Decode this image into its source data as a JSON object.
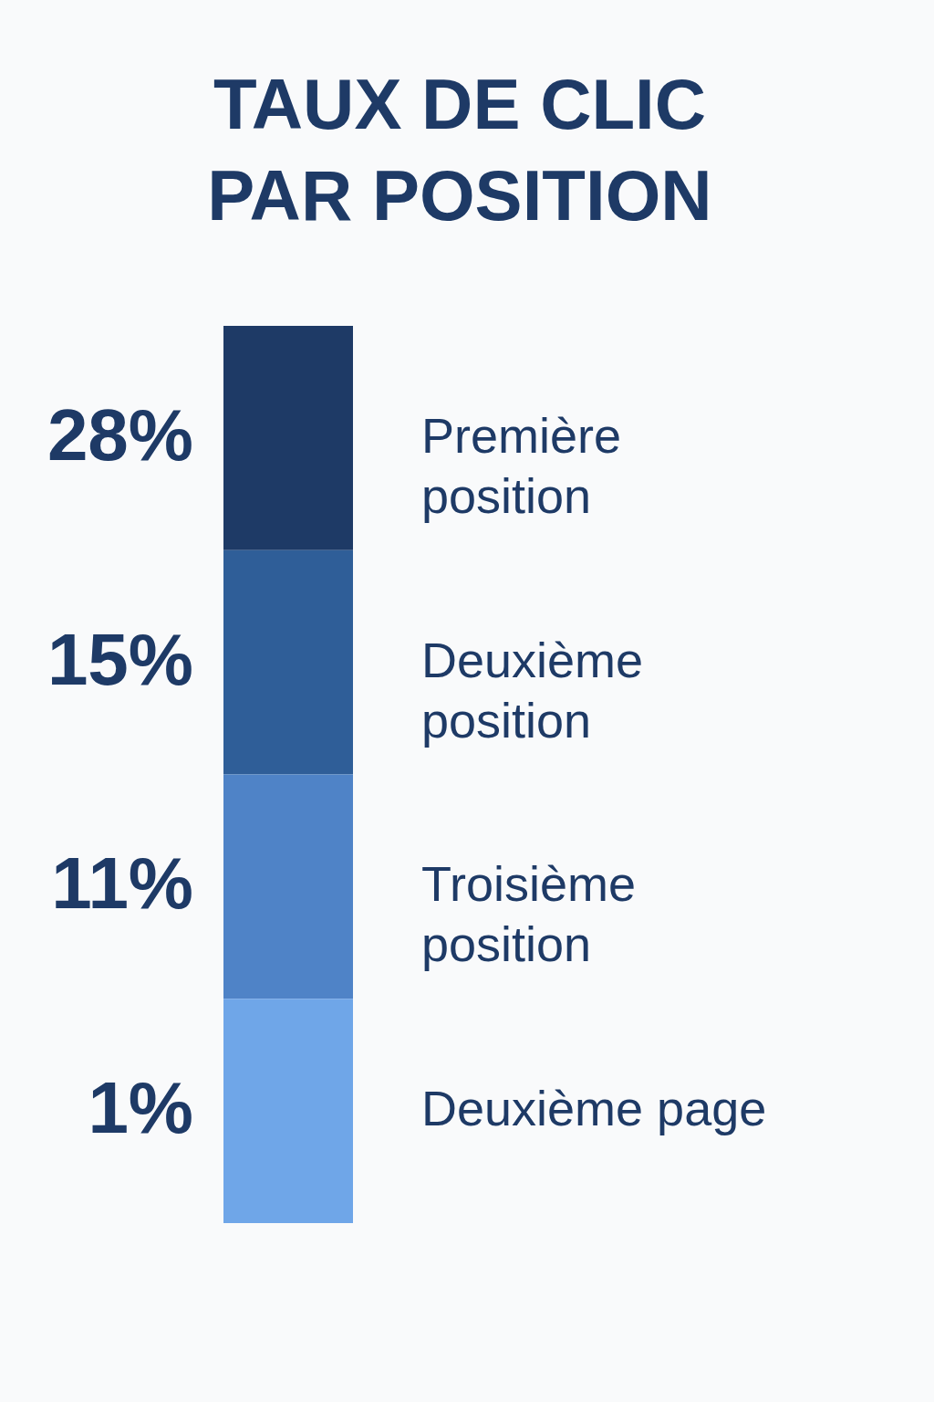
{
  "chart_data": {
    "type": "other",
    "title": "TAUX DE CLIC\nPAR POSITION",
    "categories": [
      "Première position",
      "Deuxième position",
      "Troisième position",
      "Deuxième page"
    ],
    "values": [
      28,
      15,
      11,
      1
    ],
    "value_labels": [
      "28%",
      "15%",
      "11%",
      "1%"
    ],
    "colors": [
      "#1e3a66",
      "#2f5e98",
      "#4f83c7",
      "#6fa6e8"
    ]
  }
}
